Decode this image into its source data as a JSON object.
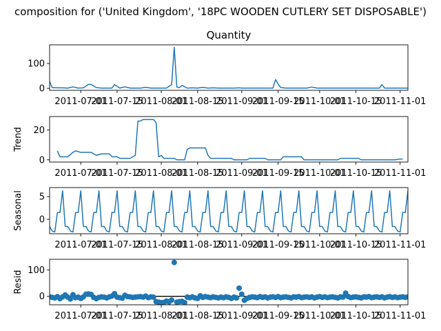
{
  "figure": {
    "suptitle": "composition for ('United Kingdom', '18PC WOODEN CUTLERY SET DISPOSABLE')"
  },
  "colors": {
    "series": "#1f77b4",
    "axis": "#000000",
    "zero_line": "#000000"
  },
  "chart_data": [
    {
      "type": "line",
      "title": "Quantity",
      "ylabel": "",
      "xlim": [
        "2011-06-19",
        "2011-11-04"
      ],
      "ylim": [
        -8,
        175
      ],
      "yticks": [
        0,
        100
      ],
      "xticks": [
        "2011-07-01",
        "2011-07-15",
        "2011-08-01",
        "2011-08-15",
        "2011-09-01",
        "2011-09-15",
        "2011-10-01",
        "2011-10-15",
        "2011-11-01"
      ],
      "series": [
        {
          "name": "",
          "points": [
            [
              "2011-06-19",
              28
            ],
            [
              "2011-06-20",
              3
            ],
            [
              "2011-06-22",
              2
            ],
            [
              "2011-06-24",
              2
            ],
            [
              "2011-06-26",
              1
            ],
            [
              "2011-06-28",
              6
            ],
            [
              "2011-06-30",
              1
            ],
            [
              "2011-07-02",
              2
            ],
            [
              "2011-07-04",
              16
            ],
            [
              "2011-07-05",
              16
            ],
            [
              "2011-07-07",
              3
            ],
            [
              "2011-07-09",
              1
            ],
            [
              "2011-07-11",
              1
            ],
            [
              "2011-07-13",
              1
            ],
            [
              "2011-07-14",
              15
            ],
            [
              "2011-07-16",
              1
            ],
            [
              "2011-07-18",
              6
            ],
            [
              "2011-07-20",
              1
            ],
            [
              "2011-07-22",
              1
            ],
            [
              "2011-07-24",
              1
            ],
            [
              "2011-07-26",
              4
            ],
            [
              "2011-07-28",
              1
            ],
            [
              "2011-07-30",
              1
            ],
            [
              "2011-08-01",
              1
            ],
            [
              "2011-08-03",
              1
            ],
            [
              "2011-08-05",
              15
            ],
            [
              "2011-08-06",
              165
            ],
            [
              "2011-08-07",
              5
            ],
            [
              "2011-08-08",
              3
            ],
            [
              "2011-08-09",
              12
            ],
            [
              "2011-08-11",
              1
            ],
            [
              "2011-08-13",
              2
            ],
            [
              "2011-08-15",
              1
            ],
            [
              "2011-08-17",
              4
            ],
            [
              "2011-08-19",
              1
            ],
            [
              "2011-08-21",
              2
            ],
            [
              "2011-08-23",
              1
            ],
            [
              "2011-08-25",
              1
            ],
            [
              "2011-08-27",
              1
            ],
            [
              "2011-08-29",
              1
            ],
            [
              "2011-08-31",
              2
            ],
            [
              "2011-09-01",
              1
            ],
            [
              "2011-09-03",
              1
            ],
            [
              "2011-09-05",
              1
            ],
            [
              "2011-09-07",
              1
            ],
            [
              "2011-09-09",
              1
            ],
            [
              "2011-09-11",
              1
            ],
            [
              "2011-09-13",
              1
            ],
            [
              "2011-09-14",
              35
            ],
            [
              "2011-09-15",
              18
            ],
            [
              "2011-09-16",
              3
            ],
            [
              "2011-09-18",
              1
            ],
            [
              "2011-09-20",
              1
            ],
            [
              "2011-09-22",
              1
            ],
            [
              "2011-09-24",
              1
            ],
            [
              "2011-09-26",
              1
            ],
            [
              "2011-09-28",
              5
            ],
            [
              "2011-09-30",
              1
            ],
            [
              "2011-10-02",
              1
            ],
            [
              "2011-10-04",
              1
            ],
            [
              "2011-10-06",
              1
            ],
            [
              "2011-10-08",
              1
            ],
            [
              "2011-10-10",
              1
            ],
            [
              "2011-10-12",
              1
            ],
            [
              "2011-10-14",
              1
            ],
            [
              "2011-10-16",
              1
            ],
            [
              "2011-10-18",
              1
            ],
            [
              "2011-10-20",
              1
            ],
            [
              "2011-10-22",
              1
            ],
            [
              "2011-10-24",
              1
            ],
            [
              "2011-10-25",
              15
            ],
            [
              "2011-10-26",
              1
            ],
            [
              "2011-10-28",
              1
            ],
            [
              "2011-10-30",
              1
            ],
            [
              "2011-11-01",
              1
            ],
            [
              "2011-11-03",
              1
            ],
            [
              "2011-11-04",
              1
            ]
          ]
        }
      ]
    },
    {
      "type": "line",
      "title": "",
      "ylabel": "Trend",
      "xlim": [
        "2011-06-19",
        "2011-11-04"
      ],
      "ylim": [
        -1.5,
        29
      ],
      "yticks": [
        0,
        20
      ],
      "xticks": [
        "2011-07-01",
        "2011-07-15",
        "2011-08-01",
        "2011-08-15",
        "2011-09-01",
        "2011-09-15",
        "2011-10-01",
        "2011-10-15",
        "2011-11-01"
      ],
      "series": [
        {
          "name": "",
          "points": [
            [
              "2011-06-22",
              6
            ],
            [
              "2011-06-23",
              2
            ],
            [
              "2011-06-26",
              2
            ],
            [
              "2011-06-28",
              5
            ],
            [
              "2011-06-29",
              6
            ],
            [
              "2011-07-01",
              5
            ],
            [
              "2011-07-05",
              5
            ],
            [
              "2011-07-07",
              3
            ],
            [
              "2011-07-09",
              4
            ],
            [
              "2011-07-12",
              4
            ],
            [
              "2011-07-13",
              2
            ],
            [
              "2011-07-15",
              2
            ],
            [
              "2011-07-16",
              1
            ],
            [
              "2011-07-20",
              1
            ],
            [
              "2011-07-22",
              3
            ],
            [
              "2011-07-23",
              26
            ],
            [
              "2011-07-24",
              26
            ],
            [
              "2011-07-25",
              27
            ],
            [
              "2011-07-29",
              27
            ],
            [
              "2011-07-30",
              25
            ],
            [
              "2011-07-31",
              2
            ],
            [
              "2011-08-01",
              3
            ],
            [
              "2011-08-02",
              1
            ],
            [
              "2011-08-06",
              1
            ],
            [
              "2011-08-07",
              0
            ],
            [
              "2011-08-10",
              0
            ],
            [
              "2011-08-11",
              7
            ],
            [
              "2011-08-12",
              8
            ],
            [
              "2011-08-18",
              8
            ],
            [
              "2011-08-19",
              3
            ],
            [
              "2011-08-20",
              1
            ],
            [
              "2011-08-21",
              1
            ],
            [
              "2011-08-28",
              1
            ],
            [
              "2011-08-29",
              0
            ],
            [
              "2011-09-03",
              0
            ],
            [
              "2011-09-04",
              1
            ],
            [
              "2011-09-10",
              1
            ],
            [
              "2011-09-11",
              0
            ],
            [
              "2011-09-16",
              0
            ],
            [
              "2011-09-17",
              2
            ],
            [
              "2011-09-24",
              2
            ],
            [
              "2011-09-25",
              0
            ],
            [
              "2011-10-08",
              0
            ],
            [
              "2011-10-09",
              1
            ],
            [
              "2011-10-16",
              1
            ],
            [
              "2011-10-17",
              0
            ],
            [
              "2011-10-30",
              0
            ],
            [
              "2011-11-01",
              0.5
            ],
            [
              "2011-11-02",
              0.5
            ]
          ]
        }
      ]
    },
    {
      "type": "line",
      "title": "",
      "ylabel": "Seasonal",
      "xlim": [
        "2011-06-19",
        "2011-11-04"
      ],
      "ylim": [
        -3.2,
        7
      ],
      "yticks": [
        0,
        5
      ],
      "xticks": [
        "2011-07-01",
        "2011-07-15",
        "2011-08-01",
        "2011-08-15",
        "2011-09-01",
        "2011-09-15",
        "2011-10-01",
        "2011-10-15",
        "2011-11-01"
      ],
      "pattern": {
        "start": "2011-06-19",
        "cycle_values": [
          -1.6,
          -2.6,
          -2.8,
          1.5,
          1.5,
          6.3,
          -1.6
        ]
      }
    },
    {
      "type": "scatter",
      "title": "",
      "ylabel": "Resid",
      "xlim": [
        "2011-06-19",
        "2011-11-04"
      ],
      "ylim": [
        -32,
        140
      ],
      "yticks": [
        0,
        100
      ],
      "xticks": [
        "2011-07-01",
        "2011-07-15",
        "2011-08-01",
        "2011-08-15",
        "2011-09-01",
        "2011-09-15",
        "2011-10-01",
        "2011-10-15",
        "2011-11-01"
      ],
      "zero_line": 0,
      "points": [
        [
          "2011-06-19",
          -2
        ],
        [
          "2011-06-20",
          -4
        ],
        [
          "2011-06-21",
          -6
        ],
        [
          "2011-06-22",
          -1
        ],
        [
          "2011-06-23",
          -9
        ],
        [
          "2011-06-24",
          -2
        ],
        [
          "2011-06-25",
          5
        ],
        [
          "2011-06-26",
          -3
        ],
        [
          "2011-06-27",
          -10
        ],
        [
          "2011-06-28",
          6
        ],
        [
          "2011-06-29",
          -5
        ],
        [
          "2011-06-30",
          -3
        ],
        [
          "2011-07-01",
          -8
        ],
        [
          "2011-07-02",
          -2
        ],
        [
          "2011-07-03",
          8
        ],
        [
          "2011-07-04",
          9
        ],
        [
          "2011-07-05",
          7
        ],
        [
          "2011-07-06",
          -4
        ],
        [
          "2011-07-07",
          -9
        ],
        [
          "2011-07-08",
          -4
        ],
        [
          "2011-07-09",
          -2
        ],
        [
          "2011-07-10",
          -3
        ],
        [
          "2011-07-11",
          -6
        ],
        [
          "2011-07-12",
          -2
        ],
        [
          "2011-07-13",
          1
        ],
        [
          "2011-07-14",
          10
        ],
        [
          "2011-07-15",
          -3
        ],
        [
          "2011-07-16",
          -5
        ],
        [
          "2011-07-17",
          -7
        ],
        [
          "2011-07-18",
          4
        ],
        [
          "2011-07-19",
          -1
        ],
        [
          "2011-07-20",
          -2
        ],
        [
          "2011-07-21",
          -4
        ],
        [
          "2011-07-22",
          -3
        ],
        [
          "2011-07-23",
          -2
        ],
        [
          "2011-07-24",
          -1
        ],
        [
          "2011-07-25",
          -3
        ],
        [
          "2011-07-26",
          1
        ],
        [
          "2011-07-27",
          -5
        ],
        [
          "2011-07-28",
          -2
        ],
        [
          "2011-07-29",
          -3
        ],
        [
          "2011-07-30",
          -20
        ],
        [
          "2011-07-31",
          -22
        ],
        [
          "2011-08-01",
          -24
        ],
        [
          "2011-08-02",
          -23
        ],
        [
          "2011-08-03",
          -18
        ],
        [
          "2011-08-04",
          -21
        ],
        [
          "2011-08-05",
          -14
        ],
        [
          "2011-08-06",
          128
        ],
        [
          "2011-08-07",
          -22
        ],
        [
          "2011-08-08",
          -20
        ],
        [
          "2011-08-09",
          -19
        ],
        [
          "2011-08-10",
          -24
        ],
        [
          "2011-08-11",
          -3
        ],
        [
          "2011-08-12",
          -5
        ],
        [
          "2011-08-13",
          -2
        ],
        [
          "2011-08-14",
          -6
        ],
        [
          "2011-08-15",
          -8
        ],
        [
          "2011-08-16",
          2
        ],
        [
          "2011-08-17",
          -4
        ],
        [
          "2011-08-18",
          -1
        ],
        [
          "2011-08-19",
          -3
        ],
        [
          "2011-08-20",
          -5
        ],
        [
          "2011-08-21",
          -2
        ],
        [
          "2011-08-22",
          -4
        ],
        [
          "2011-08-23",
          -6
        ],
        [
          "2011-08-24",
          -3
        ],
        [
          "2011-08-25",
          -5
        ],
        [
          "2011-08-26",
          -2
        ],
        [
          "2011-08-27",
          -4
        ],
        [
          "2011-08-28",
          -8
        ],
        [
          "2011-08-29",
          -3
        ],
        [
          "2011-08-30",
          -6
        ],
        [
          "2011-08-31",
          31
        ],
        [
          "2011-09-01",
          8
        ],
        [
          "2011-09-02",
          -15
        ],
        [
          "2011-09-03",
          -8
        ],
        [
          "2011-09-04",
          -4
        ],
        [
          "2011-09-05",
          -2
        ],
        [
          "2011-09-06",
          -3
        ],
        [
          "2011-09-07",
          -5
        ],
        [
          "2011-09-08",
          -1
        ],
        [
          "2011-09-09",
          -4
        ],
        [
          "2011-09-10",
          -2
        ],
        [
          "2011-09-11",
          -6
        ],
        [
          "2011-09-12",
          -3
        ],
        [
          "2011-09-13",
          -2
        ],
        [
          "2011-09-14",
          -4
        ],
        [
          "2011-09-15",
          -1
        ],
        [
          "2011-09-16",
          -5
        ],
        [
          "2011-09-17",
          -3
        ],
        [
          "2011-09-18",
          -2
        ],
        [
          "2011-09-19",
          -4
        ],
        [
          "2011-09-20",
          -6
        ],
        [
          "2011-09-21",
          -2
        ],
        [
          "2011-09-22",
          -3
        ],
        [
          "2011-09-23",
          -1
        ],
        [
          "2011-09-24",
          -5
        ],
        [
          "2011-09-25",
          -3
        ],
        [
          "2011-09-26",
          -2
        ],
        [
          "2011-09-27",
          -4
        ],
        [
          "2011-09-28",
          -2
        ],
        [
          "2011-09-29",
          -6
        ],
        [
          "2011-09-30",
          -3
        ],
        [
          "2011-10-01",
          -1
        ],
        [
          "2011-10-02",
          -4
        ],
        [
          "2011-10-03",
          -2
        ],
        [
          "2011-10-04",
          -5
        ],
        [
          "2011-10-05",
          -3
        ],
        [
          "2011-10-06",
          -2
        ],
        [
          "2011-10-07",
          -4
        ],
        [
          "2011-10-08",
          -6
        ],
        [
          "2011-10-09",
          -2
        ],
        [
          "2011-10-10",
          -3
        ],
        [
          "2011-10-11",
          12
        ],
        [
          "2011-10-12",
          -1
        ],
        [
          "2011-10-13",
          -5
        ],
        [
          "2011-10-14",
          -3
        ],
        [
          "2011-10-15",
          -2
        ],
        [
          "2011-10-16",
          -4
        ],
        [
          "2011-10-17",
          -6
        ],
        [
          "2011-10-18",
          -2
        ],
        [
          "2011-10-19",
          -3
        ],
        [
          "2011-10-20",
          -1
        ],
        [
          "2011-10-21",
          -5
        ],
        [
          "2011-10-22",
          -3
        ],
        [
          "2011-10-23",
          -2
        ],
        [
          "2011-10-24",
          -4
        ],
        [
          "2011-10-25",
          -2
        ],
        [
          "2011-10-26",
          -6
        ],
        [
          "2011-10-27",
          -3
        ],
        [
          "2011-10-28",
          -1
        ],
        [
          "2011-10-29",
          -4
        ],
        [
          "2011-10-30",
          -2
        ],
        [
          "2011-10-31",
          -5
        ],
        [
          "2011-11-01",
          -3
        ],
        [
          "2011-11-02",
          -2
        ],
        [
          "2011-11-03",
          -4
        ],
        [
          "2011-11-04",
          -2
        ]
      ]
    }
  ]
}
